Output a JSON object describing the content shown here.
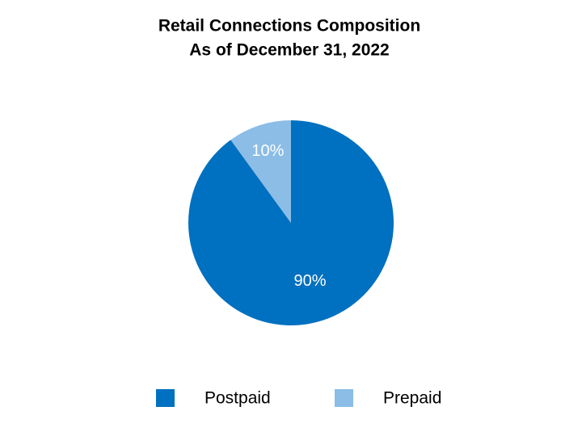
{
  "chart_data": {
    "type": "pie",
    "title": "Retail Connections Composition",
    "subtitle": "As of December 31, 2022",
    "categories": [
      "Postpaid",
      "Prepaid"
    ],
    "values": [
      90,
      10
    ],
    "value_labels": [
      "90%",
      "10%"
    ],
    "colors": [
      "#0070c0",
      "#8bbde6"
    ]
  }
}
